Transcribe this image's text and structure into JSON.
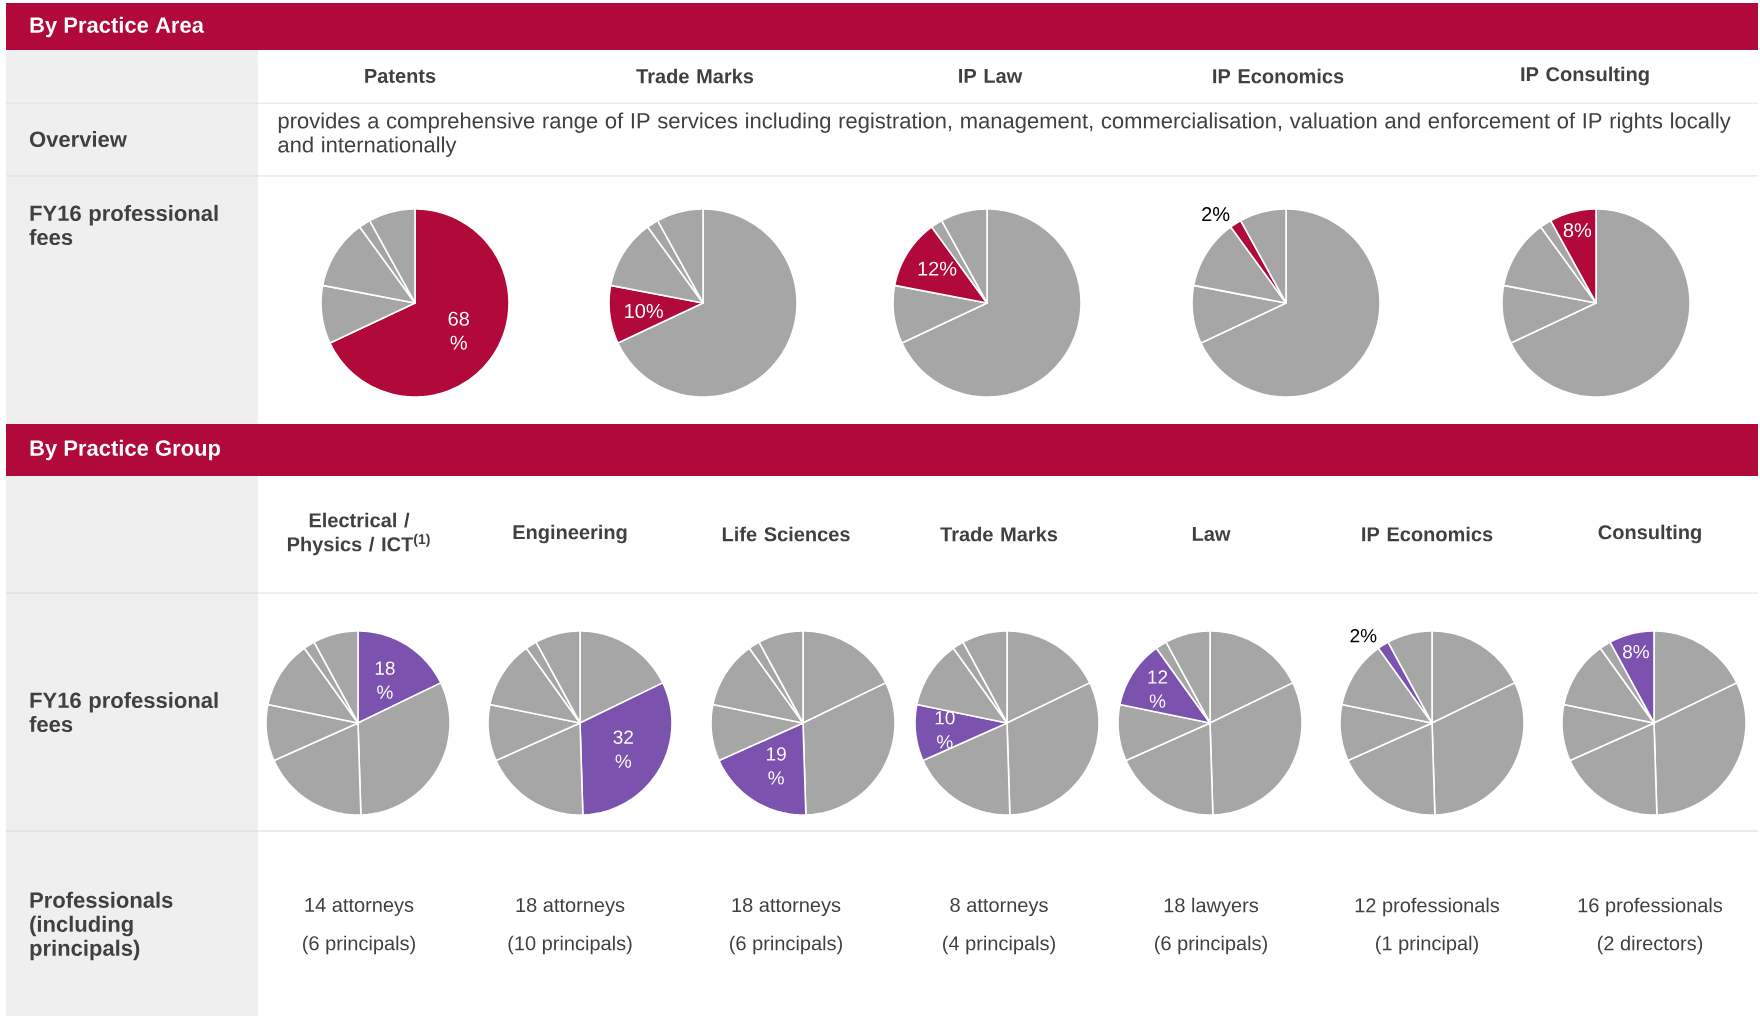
{
  "chart_data": [
    {
      "type": "other",
      "title": "By Practice Area",
      "annotations": [
        "Overview",
        "provides a comprehensive range of IP services including registration, management, commercialisation, valuation and enforcement of IP rights locally and internationally",
        "FY16 professional fees"
      ]
    },
    {
      "type": "pie",
      "title": "Patents",
      "categories": [
        null,
        null,
        null,
        null,
        null
      ],
      "values": [
        68,
        10,
        12,
        2,
        8
      ],
      "colors": [
        "#b0093a",
        "#a6a6a6",
        "#a6a6a6",
        "#a6a6a6",
        "#a6a6a6"
      ],
      "value_labels": [
        "68 %",
        null,
        null,
        null,
        null
      ]
    },
    {
      "type": "pie",
      "title": "Trade Marks",
      "categories": [
        null,
        null,
        null,
        null,
        null
      ],
      "values": [
        68,
        10,
        12,
        2,
        8
      ],
      "colors": [
        "#a6a6a6",
        "#b0093a",
        "#a6a6a6",
        "#a6a6a6",
        "#a6a6a6"
      ],
      "value_labels": [
        null,
        "10%",
        null,
        null,
        null
      ]
    },
    {
      "type": "pie",
      "title": "IP Law",
      "categories": [
        null,
        null,
        null,
        null,
        null
      ],
      "values": [
        68,
        10,
        12,
        2,
        8
      ],
      "colors": [
        "#a6a6a6",
        "#a6a6a6",
        "#b0093a",
        "#a6a6a6",
        "#a6a6a6"
      ],
      "value_labels": [
        null,
        null,
        "12%",
        null,
        null
      ]
    },
    {
      "type": "pie",
      "title": "IP Economics",
      "categories": [
        null,
        null,
        null,
        null,
        null
      ],
      "values": [
        68,
        10,
        12,
        2,
        8
      ],
      "colors": [
        "#a6a6a6",
        "#a6a6a6",
        "#a6a6a6",
        "#b0093a",
        "#a6a6a6"
      ],
      "value_labels": [
        null,
        null,
        null,
        "2%",
        null
      ]
    },
    {
      "type": "pie",
      "title": "IP Consulting",
      "categories": [
        null,
        null,
        null,
        null,
        null
      ],
      "values": [
        68,
        10,
        12,
        2,
        8
      ],
      "colors": [
        "#a6a6a6",
        "#a6a6a6",
        "#a6a6a6",
        "#a6a6a6",
        "#b0093a"
      ],
      "value_labels": [
        null,
        null,
        null,
        null,
        "8%"
      ]
    },
    {
      "type": "other",
      "title": "By Practice Group",
      "annotations": [
        "FY16 professional fees",
        "Professionals (including principals)"
      ]
    },
    {
      "type": "pie",
      "title": "Electrical / Physics / ICT$^{(1)}$",
      "categories": [
        null,
        null,
        null,
        null,
        null,
        null,
        null
      ],
      "values": [
        18,
        32,
        19,
        10,
        12,
        2,
        8
      ],
      "colors": [
        "#7b52ae",
        "#a6a6a6",
        "#a6a6a6",
        "#a6a6a6",
        "#a6a6a6",
        "#a6a6a6",
        "#a6a6a6"
      ],
      "value_labels": [
        "18 %",
        null,
        null,
        null,
        null,
        null,
        null
      ],
      "annotations": [
        "14 attorneys",
        "(6 principals)"
      ]
    },
    {
      "type": "pie",
      "title": "Engineering",
      "categories": [
        null,
        null,
        null,
        null,
        null,
        null,
        null
      ],
      "values": [
        18,
        32,
        19,
        10,
        12,
        2,
        8
      ],
      "colors": [
        "#a6a6a6",
        "#7b52ae",
        "#a6a6a6",
        "#a6a6a6",
        "#a6a6a6",
        "#a6a6a6",
        "#a6a6a6"
      ],
      "value_labels": [
        null,
        "32 %",
        null,
        null,
        null,
        null,
        null
      ],
      "annotations": [
        "18 attorneys",
        "(10 principals)"
      ]
    },
    {
      "type": "pie",
      "title": "Life Sciences",
      "categories": [
        null,
        null,
        null,
        null,
        null,
        null,
        null
      ],
      "values": [
        18,
        32,
        19,
        10,
        12,
        2,
        8
      ],
      "colors": [
        "#a6a6a6",
        "#a6a6a6",
        "#7b52ae",
        "#a6a6a6",
        "#a6a6a6",
        "#a6a6a6",
        "#a6a6a6"
      ],
      "value_labels": [
        null,
        null,
        "19 %",
        null,
        null,
        null,
        null
      ],
      "annotations": [
        "18 attorneys",
        "(6 principals)"
      ]
    },
    {
      "type": "pie",
      "title": "Trade Marks",
      "categories": [
        null,
        null,
        null,
        null,
        null,
        null,
        null
      ],
      "values": [
        18,
        32,
        19,
        10,
        12,
        2,
        8
      ],
      "colors": [
        "#a6a6a6",
        "#a6a6a6",
        "#a6a6a6",
        "#7b52ae",
        "#a6a6a6",
        "#a6a6a6",
        "#a6a6a6"
      ],
      "value_labels": [
        null,
        null,
        null,
        "10 %",
        null,
        null,
        null
      ],
      "annotations": [
        "8 attorneys",
        "(4 principals)"
      ]
    },
    {
      "type": "pie",
      "title": "Law",
      "categories": [
        null,
        null,
        null,
        null,
        null,
        null,
        null
      ],
      "values": [
        18,
        32,
        19,
        10,
        12,
        2,
        8
      ],
      "colors": [
        "#a6a6a6",
        "#a6a6a6",
        "#a6a6a6",
        "#a6a6a6",
        "#7b52ae",
        "#a6a6a6",
        "#a6a6a6"
      ],
      "value_labels": [
        null,
        null,
        null,
        null,
        "12 %",
        null,
        null
      ],
      "annotations": [
        "18 lawyers",
        "(6 principals)"
      ]
    },
    {
      "type": "pie",
      "title": "IP Economics",
      "categories": [
        null,
        null,
        null,
        null,
        null,
        null,
        null
      ],
      "values": [
        18,
        32,
        19,
        10,
        12,
        2,
        8
      ],
      "colors": [
        "#a6a6a6",
        "#a6a6a6",
        "#a6a6a6",
        "#a6a6a6",
        "#a6a6a6",
        "#7b52ae",
        "#a6a6a6"
      ],
      "value_labels": [
        null,
        null,
        null,
        null,
        null,
        "2%",
        null
      ],
      "annotations": [
        "12 professionals",
        "(1 principal)"
      ]
    },
    {
      "type": "pie",
      "title": "Consulting",
      "categories": [
        null,
        null,
        null,
        null,
        null,
        null,
        null
      ],
      "values": [
        18,
        32,
        19,
        10,
        12,
        2,
        8
      ],
      "colors": [
        "#a6a6a6",
        "#a6a6a6",
        "#a6a6a6",
        "#a6a6a6",
        "#a6a6a6",
        "#a6a6a6",
        "#7b52ae"
      ],
      "value_labels": [
        null,
        null,
        null,
        null,
        null,
        null,
        "8%"
      ],
      "annotations": [
        "16 professionals",
        "(2 directors)"
      ]
    }
  ]
}
